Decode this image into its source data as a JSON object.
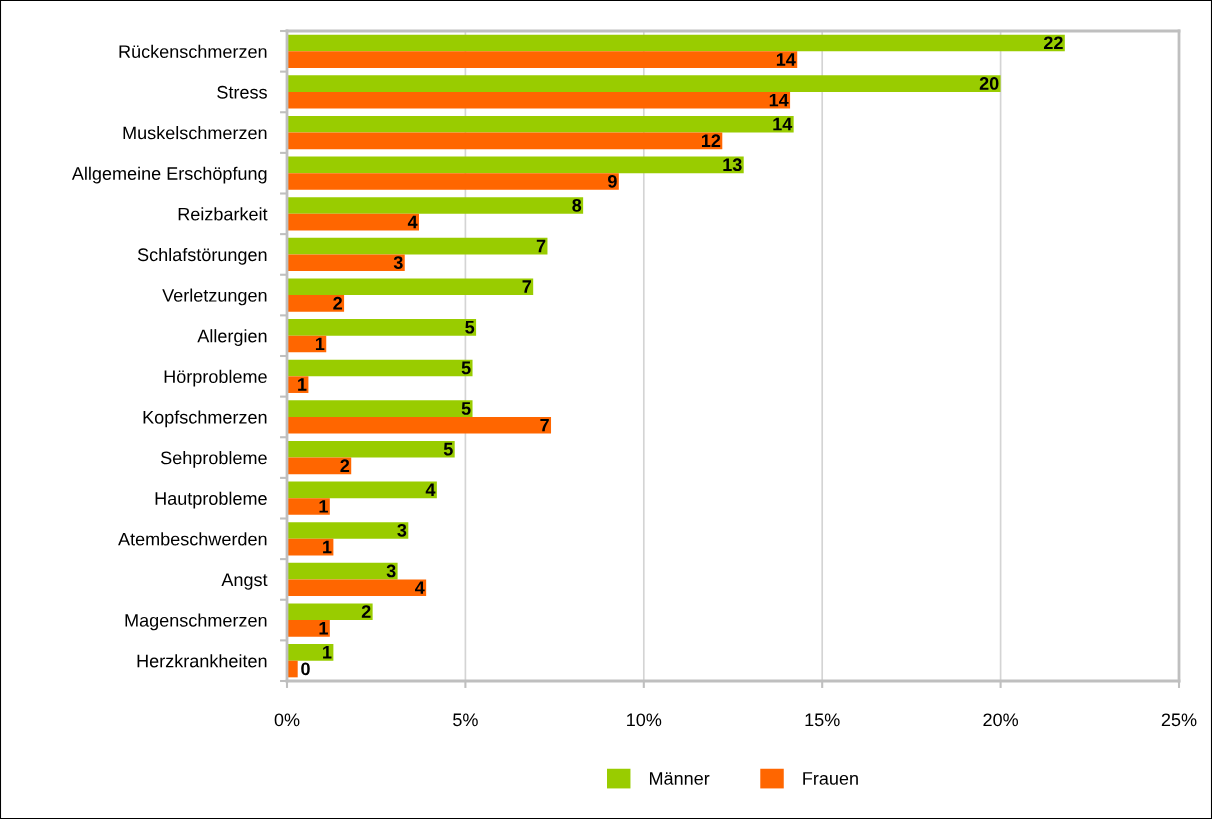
{
  "chart_data": {
    "type": "bar",
    "orientation": "horizontal",
    "categories": [
      "Rückenschmerzen",
      "Stress",
      "Muskelschmerzen",
      "Allgemeine Erschöpfung",
      "Reizbarkeit",
      "Schlafstörungen",
      "Verletzungen",
      "Allergien",
      "Hörprobleme",
      "Kopfschmerzen",
      "Sehprobleme",
      "Hautprobleme",
      "Atembeschwerden",
      "Angst",
      "Magenschmerzen",
      "Herzkrankheiten"
    ],
    "series": [
      {
        "name": "Männer",
        "color": "#99cc00",
        "values": [
          21.8,
          20.0,
          14.2,
          12.8,
          8.3,
          7.3,
          6.9,
          5.3,
          5.2,
          5.2,
          4.7,
          4.2,
          3.4,
          3.1,
          2.4,
          1.3
        ],
        "value_labels": [
          "22",
          "20",
          "14",
          "13",
          "8",
          "7",
          "7",
          "5",
          "5",
          "5",
          "5",
          "4",
          "3",
          "3",
          "2",
          "1"
        ]
      },
      {
        "name": "Frauen",
        "color": "#ff6600",
        "values": [
          14.3,
          14.1,
          12.2,
          9.3,
          3.7,
          3.3,
          1.6,
          1.1,
          0.6,
          7.4,
          1.8,
          1.2,
          1.3,
          3.9,
          1.2,
          0.3
        ],
        "value_labels": [
          "14",
          "14",
          "12",
          "9",
          "4",
          "3",
          "2",
          "1",
          "1",
          "7",
          "2",
          "1",
          "1",
          "4",
          "1",
          "0"
        ]
      }
    ],
    "xlim": [
      0,
      25
    ],
    "xticks": [
      {
        "value": 0,
        "label": "0%"
      },
      {
        "value": 5,
        "label": "5%"
      },
      {
        "value": 10,
        "label": "10%"
      },
      {
        "value": 15,
        "label": "15%"
      },
      {
        "value": 20,
        "label": "20%"
      },
      {
        "value": 25,
        "label": "25%"
      }
    ],
    "grid": "x",
    "legend": "bottom"
  }
}
